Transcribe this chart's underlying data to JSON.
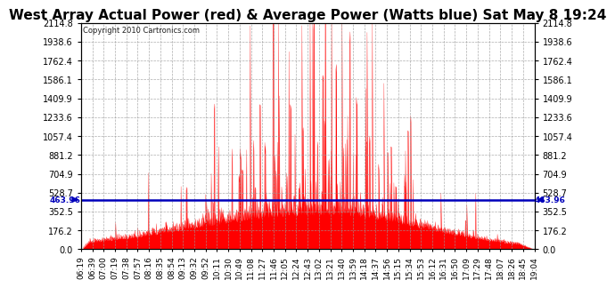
{
  "title": "West Array Actual Power (red) & Average Power (Watts blue) Sat May 8 19:24",
  "copyright_text": "Copyright 2010 Cartronics.com",
  "average_power": 463.96,
  "ymax": 2114.8,
  "ymin": 0.0,
  "yticks": [
    0.0,
    176.2,
    352.5,
    528.7,
    704.9,
    881.2,
    1057.4,
    1233.6,
    1409.9,
    1586.1,
    1762.4,
    1938.6,
    2114.8
  ],
  "x_tick_labels": [
    "06:19",
    "06:39",
    "07:00",
    "07:19",
    "07:38",
    "07:57",
    "08:16",
    "08:35",
    "08:54",
    "09:13",
    "09:32",
    "09:52",
    "10:11",
    "10:30",
    "10:49",
    "11:08",
    "11:27",
    "11:46",
    "12:05",
    "12:24",
    "12:43",
    "13:02",
    "13:21",
    "13:40",
    "13:59",
    "14:18",
    "14:37",
    "14:56",
    "15:15",
    "15:34",
    "15:53",
    "16:12",
    "16:31",
    "16:50",
    "17:09",
    "17:29",
    "17:48",
    "18:07",
    "18:26",
    "18:45",
    "19:04"
  ],
  "bg_color": "#ffffff",
  "bar_color": "#ff0000",
  "avg_line_color": "#0000bb",
  "grid_color": "#999999",
  "title_fontsize": 11,
  "label_fontsize": 7
}
